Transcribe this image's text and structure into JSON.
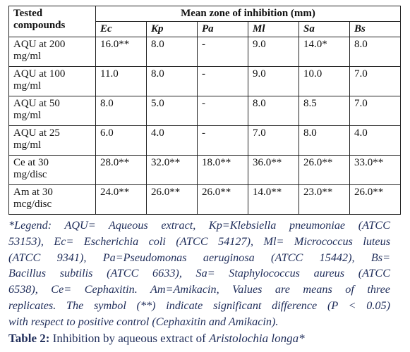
{
  "table": {
    "header": {
      "first": "Tested compounds",
      "group": "Mean zone of inhibition (mm)",
      "columns": [
        "Ec",
        "Kp",
        "Pa",
        "Ml",
        "Sa",
        "Bs"
      ]
    },
    "rows": [
      [
        "AQU at 200 mg/ml",
        "16.0**",
        "8.0",
        "-",
        "9.0",
        "14.0*",
        "8.0"
      ],
      [
        "AQU at 100 mg/ml",
        "11.0",
        "8.0",
        "-",
        "9.0",
        "10.0",
        "7.0"
      ],
      [
        "AQU at 50 mg/ml",
        "8.0",
        "5.0",
        "-",
        "8.0",
        "8.5",
        "7.0"
      ],
      [
        "AQU at 25 mg/ml",
        "6.0",
        "4.0",
        "-",
        "7.0",
        "8.0",
        "4.0"
      ],
      [
        "Ce at 30 mg/disc",
        "28.0**",
        "32.0**",
        "18.0**",
        "36.0**",
        "26.0**",
        "33.0**"
      ],
      [
        "Am at 30 mcg/disc",
        "24.0**",
        "26.0**",
        "26.0**",
        "14.0**",
        "23.0**",
        "26.0**"
      ]
    ]
  },
  "legend": [
    "*Legend: AQU= Aqueous extract, Kp=Klebsiella pneumoniae (ATCC",
    "53153), Ec= Escherichia coli (ATCC 54127), Ml= Micrococcus luteus",
    "(ATCC 9341), Pa=Pseudomonas aeruginosa (ATCC 15442), Bs=",
    "Bacillus subtilis (ATCC 6633), Sa= Staphylococcus aureus (ATCC",
    "6538), Ce= Cephaxitin. Am=Amikacin, Values are means of three",
    "replicates. The symbol (**) indicate significant difference (P < 0.05)",
    "with respect to positive control (Cephaxitin and Amikacin)."
  ],
  "caption": {
    "label": "Table 2:",
    "text": "Inhibition by aqueous extract of",
    "species": "Aristolochia longa*"
  }
}
